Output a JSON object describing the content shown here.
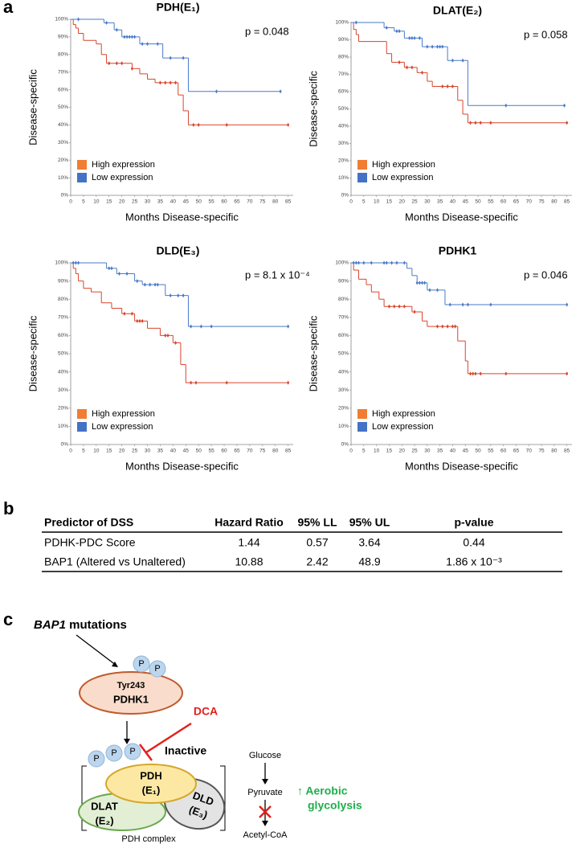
{
  "panel_labels": [
    "a",
    "b",
    "c"
  ],
  "chart_data": [
    {
      "type": "line",
      "step": true,
      "title": "PDH(E₁)",
      "annotation": "p = 0.048",
      "xlabel": "Months Disease-specific",
      "ylabel": "Disease-specific",
      "legend": "lower left",
      "xlim": [
        0,
        87
      ],
      "xticks": [
        0,
        5,
        10,
        15,
        20,
        25,
        30,
        35,
        40,
        45,
        50,
        55,
        60,
        65,
        70,
        75,
        80,
        85
      ],
      "ylim": [
        0,
        100
      ],
      "yticks": [
        {
          "value": 0,
          "label": "0%"
        },
        {
          "value": 10,
          "label": "10%"
        },
        {
          "value": 20,
          "label": "20%"
        },
        {
          "value": 30,
          "label": "30%"
        },
        {
          "value": 40,
          "label": "40%"
        },
        {
          "value": 50,
          "label": "50%"
        },
        {
          "value": 60,
          "label": "60%"
        },
        {
          "value": 70,
          "label": "70%"
        },
        {
          "value": 80,
          "label": "80%"
        },
        {
          "value": 90,
          "label": "90%"
        },
        {
          "value": 100,
          "label": "100%"
        }
      ],
      "series": [
        {
          "name": "High expression",
          "color": "#d9442b",
          "legend_color": "#f07d33",
          "x": [
            0,
            1,
            2,
            3,
            5,
            10,
            12,
            14,
            24,
            27,
            30,
            33,
            42,
            44,
            46,
            85
          ],
          "values": [
            100,
            97,
            95,
            92,
            88,
            86,
            80,
            75,
            72,
            69,
            66,
            64,
            57,
            48,
            40,
            40
          ],
          "censored_x": [
            15,
            18,
            20,
            24,
            35,
            37,
            39,
            41,
            48,
            50,
            61,
            85
          ]
        },
        {
          "name": "Low expression",
          "color": "#4a7ac7",
          "legend_color": "#4472c4",
          "x": [
            0,
            13,
            17,
            20,
            27,
            36,
            46,
            82
          ],
          "values": [
            100,
            98,
            94,
            90,
            86,
            78,
            59,
            59
          ],
          "censored_x": [
            3,
            14,
            18,
            21,
            22,
            23,
            24,
            25,
            28,
            30,
            34,
            39,
            44,
            57,
            82
          ]
        }
      ]
    },
    {
      "type": "line",
      "step": true,
      "title": "DLAT(E₂)",
      "annotation": "p = 0.058",
      "xlabel": "Months Disease-specific",
      "ylabel": "Disease-specific",
      "legend": "lower left",
      "xlim": [
        0,
        87
      ],
      "xticks": [
        0,
        5,
        10,
        15,
        20,
        25,
        30,
        35,
        40,
        45,
        50,
        55,
        60,
        65,
        70,
        75,
        80,
        85
      ],
      "ylim": [
        0,
        100
      ],
      "yticks": [
        {
          "value": 0,
          "label": "0%"
        },
        {
          "value": 10,
          "label": "10%"
        },
        {
          "value": 20,
          "label": "20%"
        },
        {
          "value": 30,
          "label": "30%"
        },
        {
          "value": 40,
          "label": "40%"
        },
        {
          "value": 50,
          "label": "50%"
        },
        {
          "value": 60,
          "label": "60%"
        },
        {
          "value": 70,
          "label": "70%"
        },
        {
          "value": 80,
          "label": "80%"
        },
        {
          "value": 90,
          "label": "90%"
        },
        {
          "value": 100,
          "label": "100%"
        }
      ],
      "series": [
        {
          "name": "High expression",
          "color": "#d9442b",
          "legend_color": "#f07d33",
          "x": [
            0,
            1,
            2,
            3,
            14,
            16,
            21,
            26,
            30,
            32,
            42,
            44,
            46,
            85
          ],
          "values": [
            100,
            96,
            93,
            89,
            82,
            77,
            74,
            71,
            66,
            63,
            55,
            47,
            42,
            42
          ],
          "censored_x": [
            19,
            22,
            24,
            28,
            36,
            38,
            40,
            47,
            49,
            51,
            55,
            85
          ]
        },
        {
          "name": "Low expression",
          "color": "#4a7ac7",
          "legend_color": "#4472c4",
          "x": [
            0,
            13,
            17,
            21,
            28,
            38,
            46,
            84
          ],
          "values": [
            100,
            97,
            95,
            91,
            86,
            78,
            52,
            52
          ],
          "censored_x": [
            2,
            14,
            18,
            19,
            23,
            24,
            25,
            27,
            30,
            32,
            34,
            35,
            36,
            40,
            44,
            61,
            84
          ]
        }
      ]
    },
    {
      "type": "line",
      "step": true,
      "title": "DLD(E₃)",
      "annotation": "p = 8.1 x 10⁻⁴",
      "xlabel": "Months Disease-specific",
      "ylabel": "Disease-specific",
      "legend": "lower left",
      "xlim": [
        0,
        87
      ],
      "xticks": [
        0,
        5,
        10,
        15,
        20,
        25,
        30,
        35,
        40,
        45,
        50,
        55,
        60,
        65,
        70,
        75,
        80,
        85
      ],
      "ylim": [
        0,
        100
      ],
      "yticks": [
        {
          "value": 0,
          "label": "0%"
        },
        {
          "value": 10,
          "label": "10%"
        },
        {
          "value": 20,
          "label": "20%"
        },
        {
          "value": 30,
          "label": "30%"
        },
        {
          "value": 40,
          "label": "40%"
        },
        {
          "value": 50,
          "label": "50%"
        },
        {
          "value": 60,
          "label": "60%"
        },
        {
          "value": 70,
          "label": "70%"
        },
        {
          "value": 80,
          "label": "80%"
        },
        {
          "value": 90,
          "label": "90%"
        },
        {
          "value": 100,
          "label": "100%"
        }
      ],
      "series": [
        {
          "name": "High expression",
          "color": "#d9442b",
          "legend_color": "#f07d33",
          "x": [
            0,
            1,
            2,
            3,
            5,
            8,
            12,
            16,
            20,
            25,
            30,
            35,
            40,
            43,
            45,
            85
          ],
          "values": [
            100,
            97,
            94,
            90,
            86,
            84,
            78,
            75,
            72,
            68,
            64,
            60,
            56,
            44,
            34,
            34
          ],
          "censored_x": [
            21,
            24,
            26,
            27,
            28,
            37,
            38,
            41,
            47,
            49,
            61,
            85
          ]
        },
        {
          "name": "Low expression",
          "color": "#4a7ac7",
          "legend_color": "#4472c4",
          "x": [
            0,
            14,
            18,
            25,
            28,
            37,
            46,
            85
          ],
          "values": [
            100,
            97,
            94,
            90,
            88,
            82,
            65,
            65
          ],
          "censored_x": [
            1,
            2,
            3,
            15,
            16,
            19,
            22,
            26,
            29,
            31,
            33,
            34,
            39,
            42,
            44,
            47,
            51,
            55,
            85
          ]
        }
      ]
    },
    {
      "type": "line",
      "step": true,
      "title": "PDHK1",
      "annotation": "p = 0.046",
      "xlabel": "Months Disease-specific",
      "ylabel": "Disease-specific",
      "legend": "lower left",
      "xlim": [
        0,
        87
      ],
      "xticks": [
        0,
        5,
        10,
        15,
        20,
        25,
        30,
        35,
        40,
        45,
        50,
        55,
        60,
        65,
        70,
        75,
        80,
        85
      ],
      "ylim": [
        0,
        100
      ],
      "yticks": [
        {
          "value": 0,
          "label": "0%"
        },
        {
          "value": 10,
          "label": "10%"
        },
        {
          "value": 20,
          "label": "20%"
        },
        {
          "value": 30,
          "label": "30%"
        },
        {
          "value": 40,
          "label": "40%"
        },
        {
          "value": 50,
          "label": "50%"
        },
        {
          "value": 60,
          "label": "60%"
        },
        {
          "value": 70,
          "label": "70%"
        },
        {
          "value": 80,
          "label": "80%"
        },
        {
          "value": 90,
          "label": "90%"
        },
        {
          "value": 100,
          "label": "100%"
        }
      ],
      "series": [
        {
          "name": "High expression",
          "color": "#d9442b",
          "legend_color": "#f07d33",
          "x": [
            0,
            1,
            3,
            6,
            8,
            11,
            13,
            24,
            28,
            30,
            42,
            45,
            46,
            85
          ],
          "values": [
            100,
            96,
            91,
            88,
            84,
            80,
            76,
            73,
            68,
            65,
            57,
            46,
            39,
            39
          ],
          "censored_x": [
            15,
            17,
            19,
            21,
            25,
            34,
            36,
            38,
            40,
            41,
            47,
            48,
            49,
            51,
            61,
            85
          ]
        },
        {
          "name": "Low expression",
          "color": "#4a7ac7",
          "legend_color": "#4472c4",
          "x": [
            0,
            22,
            24,
            26,
            30,
            37,
            85
          ],
          "values": [
            100,
            97,
            93,
            89,
            85,
            77,
            77
          ],
          "censored_x": [
            1,
            2,
            3,
            5,
            8,
            13,
            14,
            16,
            18,
            21,
            26,
            27,
            28,
            29,
            31,
            34,
            39,
            44,
            46,
            55,
            85
          ]
        }
      ]
    }
  ],
  "table": {
    "header": [
      "Predictor of DSS",
      "Hazard Ratio",
      "95% LL",
      "95% UL",
      "p-value"
    ],
    "rows": [
      [
        "PDHK-PDC Score",
        1.44,
        0.57,
        3.64,
        0.44
      ],
      [
        "BAP1 (Altered vs Unaltered)",
        10.88,
        2.42,
        48.9,
        "1.86 x 10⁻³"
      ]
    ]
  },
  "diagram": {
    "mutation_gene": "BAP1",
    "mutation_suffix": " mutations",
    "kinase_site": "Tyr243",
    "kinase": "PDHK1",
    "phospho": "P",
    "inhibitor": "DCA",
    "state": "Inactive",
    "pdh": "PDH",
    "pdh_sub": "(E₁)",
    "dlat": "DLAT",
    "dlat_sub": "(E₂)",
    "dld": "DLD",
    "dld_sub": "(E₃)",
    "complex": "PDH complex",
    "pathway": [
      "Glucose",
      "Pyruvate",
      "Acetyl-CoA"
    ],
    "effect": [
      "↑ Aerobic",
      "glycolysis"
    ]
  }
}
